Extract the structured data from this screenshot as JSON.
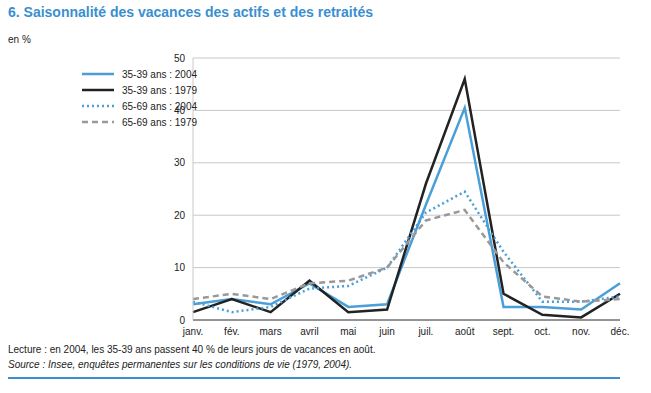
{
  "chart_data": {
    "type": "line",
    "title": "6. Saisonnalité des vacances des actifs et des retraités",
    "ylabel": "en %",
    "categories": [
      "janv.",
      "fév.",
      "mars",
      "avril",
      "mai",
      "juin",
      "juil.",
      "août",
      "sept.",
      "oct.",
      "nov.",
      "déc."
    ],
    "series": [
      {
        "name": "35-39 ans : 2004",
        "color": "#4a9fd8",
        "line_style": "solid",
        "values": [
          3,
          4,
          3,
          7,
          2.5,
          3,
          22,
          40.5,
          2.5,
          2.5,
          2,
          7
        ]
      },
      {
        "name": "35-39 ans : 1979",
        "color": "#222222",
        "line_style": "solid",
        "values": [
          1.5,
          4,
          1.5,
          7.5,
          1.5,
          2,
          26,
          46,
          5,
          1,
          0.5,
          5
        ]
      },
      {
        "name": "65-69 ans : 2004",
        "color": "#4a9fd8",
        "line_style": "dotted",
        "values": [
          3.5,
          1.5,
          2.5,
          6,
          6.5,
          10,
          20.5,
          24.5,
          13,
          3.5,
          3.5,
          4.5
        ]
      },
      {
        "name": "65-69 ans : 1979",
        "color": "#999999",
        "line_style": "dashed",
        "values": [
          4,
          5,
          4,
          7,
          7.5,
          10,
          19,
          21,
          11,
          4.5,
          3.5,
          4
        ]
      }
    ],
    "ylim": [
      0,
      50
    ],
    "yticks": [
      0,
      10,
      20,
      30,
      40,
      50
    ],
    "grid": true,
    "legend": "upper left",
    "annotations": [
      "Lecture : en 2004, les 35-39 ans passent 40 % de leurs jours de vacances en août.",
      "Source : Insee, enquêtes permanentes sur les conditions de vie (1979, 2004)."
    ]
  }
}
